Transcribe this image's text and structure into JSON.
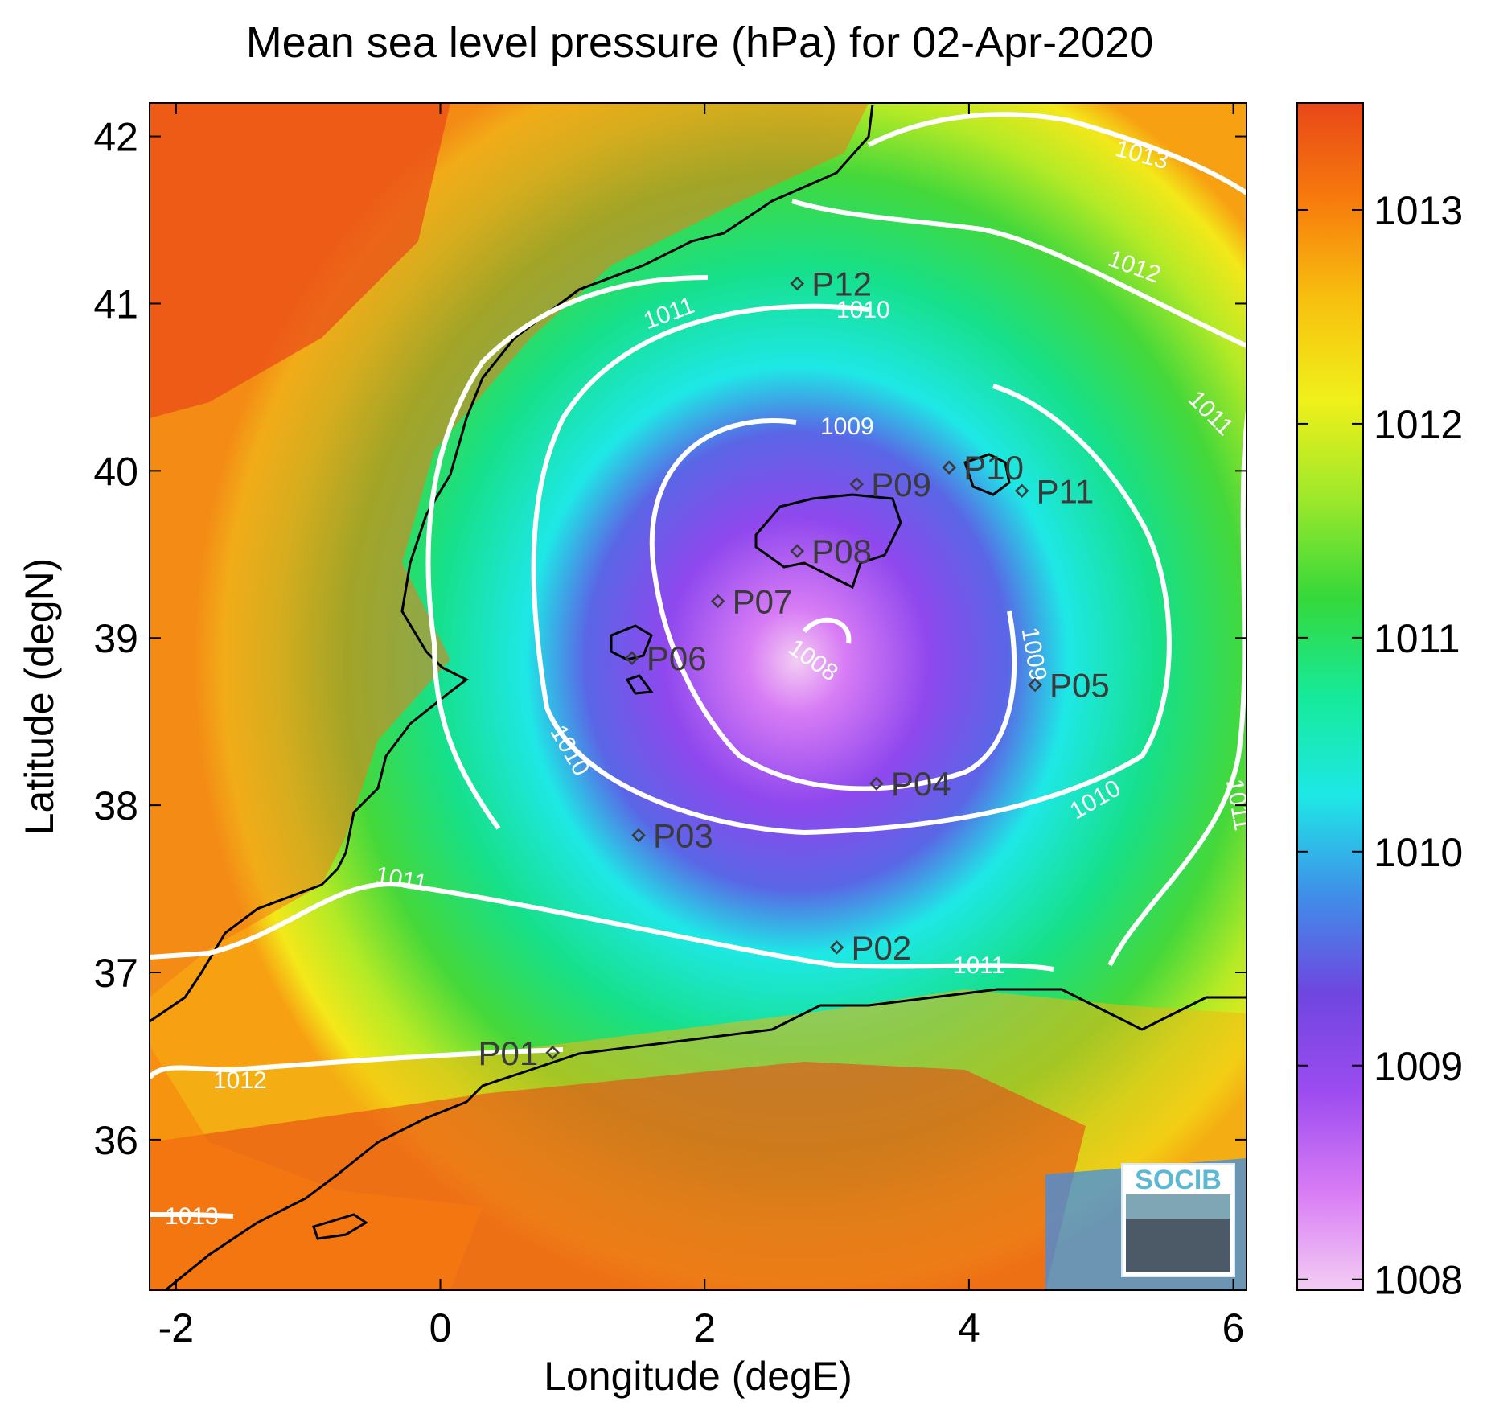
{
  "title": "Mean sea level pressure (hPa) for 02-Apr-2020",
  "xlabel": "Longitude (degE)",
  "ylabel": "Latitude (degN)",
  "x_ticks": [
    -2,
    0,
    2,
    4,
    6
  ],
  "y_ticks": [
    36,
    37,
    38,
    39,
    40,
    41,
    42
  ],
  "x_range": [
    -2.2,
    6.1
  ],
  "y_range": [
    35.1,
    42.2
  ],
  "colorbar": {
    "ticks": [
      1008,
      1009,
      1010,
      1011,
      1012,
      1013
    ],
    "range": [
      1007.95,
      1013.5
    ],
    "colors": [
      "#f3cdf3",
      "#d87cf5",
      "#9c4cf0",
      "#6f46e0",
      "#3f8fe9",
      "#1ee8e6",
      "#16ea9a",
      "#35d83a",
      "#9ee82b",
      "#f0f01a",
      "#f7c10f",
      "#f77c0c",
      "#e94718"
    ]
  },
  "contour_labels": [
    "1008",
    "1009",
    "1010",
    "1011",
    "1012",
    "1013"
  ],
  "stations": [
    {
      "name": "P01",
      "lon": 0.85,
      "lat": 36.52
    },
    {
      "name": "P02",
      "lon": 3.0,
      "lat": 37.15
    },
    {
      "name": "P03",
      "lon": 1.5,
      "lat": 37.82
    },
    {
      "name": "P04",
      "lon": 3.3,
      "lat": 38.13
    },
    {
      "name": "P05",
      "lon": 4.5,
      "lat": 38.72
    },
    {
      "name": "P06",
      "lon": 1.45,
      "lat": 38.88
    },
    {
      "name": "P07",
      "lon": 2.1,
      "lat": 39.22
    },
    {
      "name": "P08",
      "lon": 2.7,
      "lat": 39.52
    },
    {
      "name": "P09",
      "lon": 3.15,
      "lat": 39.92
    },
    {
      "name": "P10",
      "lon": 3.85,
      "lat": 40.02
    },
    {
      "name": "P11",
      "lon": 4.4,
      "lat": 39.88
    },
    {
      "name": "P12",
      "lon": 2.7,
      "lat": 41.12
    }
  ],
  "logo_text": "SOCIB"
}
